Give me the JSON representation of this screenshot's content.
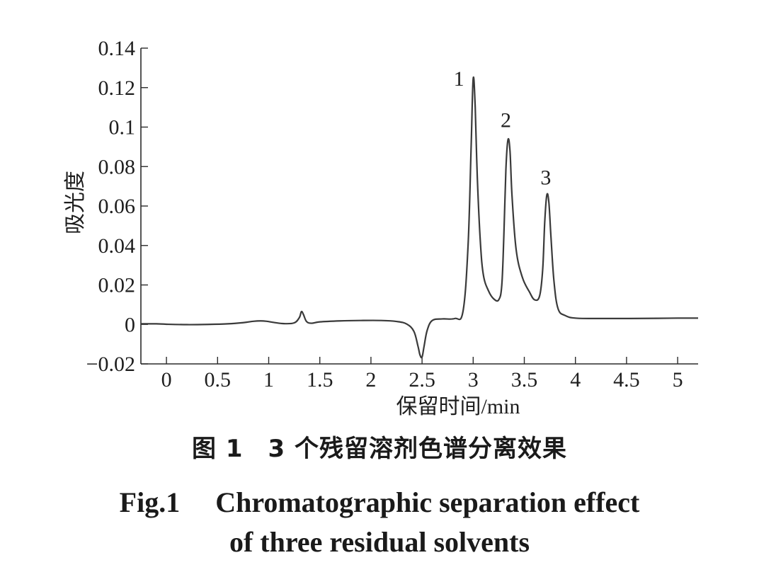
{
  "chart_data": {
    "type": "line",
    "xlabel": "保留时间/min",
    "ylabel": "吸光度",
    "xlim": [
      -0.25,
      5.2
    ],
    "ylim": [
      -0.02,
      0.14
    ],
    "x_ticks": [
      0,
      0.5,
      1,
      1.5,
      2,
      2.5,
      3,
      3.5,
      4,
      4.5,
      5
    ],
    "x_tick_labels": [
      "0",
      "0.5",
      "1",
      "1.5",
      "2",
      "2.5",
      "3",
      "3.5",
      "4",
      "4.5",
      "5"
    ],
    "y_ticks": [
      -0.02,
      0,
      0.02,
      0.04,
      0.06,
      0.08,
      0.1,
      0.12,
      0.14
    ],
    "y_tick_labels": [
      "−0.02",
      "0",
      "0.02",
      "0.04",
      "0.06",
      "0.08",
      "0.1",
      "0.12",
      "0.14"
    ],
    "grid": false,
    "legend": "none",
    "line_color": "#3a3a3a",
    "series": [
      {
        "x": [
          -0.25,
          -0.1,
          0,
          0.2,
          0.4,
          0.6,
          0.75,
          0.85,
          0.92,
          0.98,
          1.05,
          1.15,
          1.25,
          1.3,
          1.32,
          1.34,
          1.37,
          1.42,
          1.5,
          1.7,
          1.9,
          2.1,
          2.25,
          2.35,
          2.42,
          2.46,
          2.48,
          2.5,
          2.52,
          2.55,
          2.6,
          2.7,
          2.82,
          2.9,
          2.95,
          2.98,
          3.0,
          3.02,
          3.04,
          3.07,
          3.1,
          3.15,
          3.2,
          3.25,
          3.28,
          3.3,
          3.32,
          3.34,
          3.36,
          3.38,
          3.42,
          3.48,
          3.55,
          3.6,
          3.65,
          3.68,
          3.7,
          3.72,
          3.74,
          3.76,
          3.79,
          3.83,
          3.9,
          4.0,
          4.2,
          4.5,
          4.8,
          5.0,
          5.2
        ],
        "y": [
          0.0003,
          0.0003,
          0.0001,
          -0.0001,
          0.0,
          0.0003,
          0.0009,
          0.0016,
          0.0018,
          0.0016,
          0.001,
          0.0004,
          0.0008,
          0.0035,
          0.0065,
          0.005,
          0.0015,
          0.0006,
          0.0013,
          0.0018,
          0.002,
          0.002,
          0.0015,
          0.0002,
          -0.0035,
          -0.011,
          -0.0155,
          -0.0165,
          -0.011,
          -0.003,
          0.002,
          0.0028,
          0.003,
          0.0065,
          0.04,
          0.09,
          0.1245,
          0.11,
          0.075,
          0.042,
          0.025,
          0.017,
          0.013,
          0.0125,
          0.02,
          0.045,
          0.0785,
          0.0935,
          0.088,
          0.065,
          0.038,
          0.024,
          0.0165,
          0.0125,
          0.0145,
          0.028,
          0.052,
          0.0655,
          0.062,
          0.045,
          0.022,
          0.008,
          0.0045,
          0.0032,
          0.003,
          0.003,
          0.0031,
          0.0032,
          0.0032
        ]
      }
    ],
    "annotations": [
      {
        "text": "1",
        "x": 2.86,
        "y": 0.1245
      },
      {
        "text": "2",
        "x": 3.32,
        "y": 0.1035
      },
      {
        "text": "3",
        "x": 3.71,
        "y": 0.0745
      }
    ]
  },
  "caption": {
    "cn": "图 1　3 个残留溶剂色谱分离效果",
    "en_line1": "Fig.1　 Chromatographic separation effect",
    "en_line2": "of three residual solvents"
  }
}
